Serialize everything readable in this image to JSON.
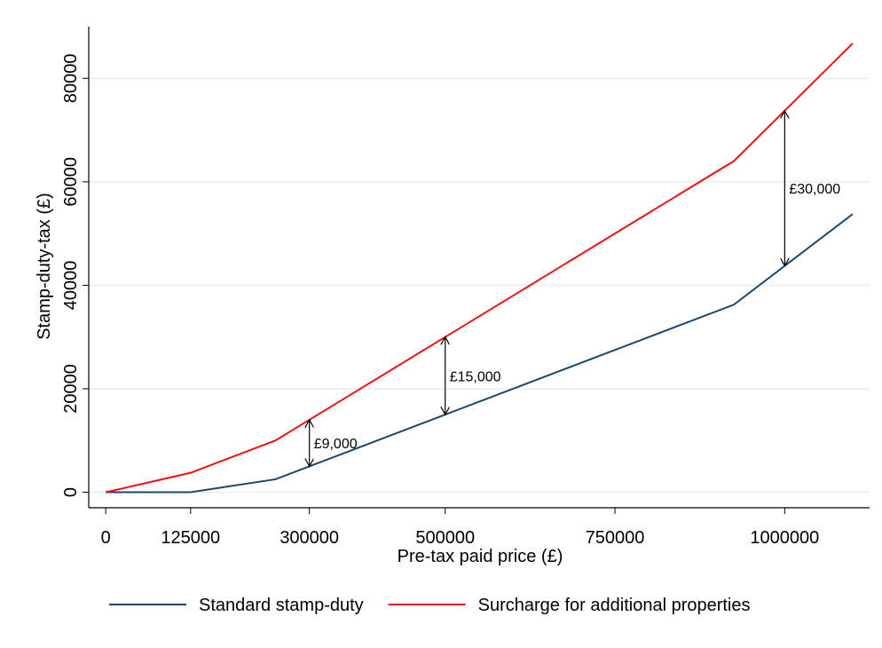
{
  "chart_data": {
    "type": "line",
    "x_label": "Pre-tax paid price (£)",
    "y_label": "Stamp-duty-tax (£)",
    "x": [
      0,
      125000,
      250000,
      925000,
      1100000
    ],
    "series": [
      {
        "name": "Standard stamp-duty",
        "color": "#1a476f",
        "values": [
          0,
          0,
          2500,
          36250,
          53750
        ]
      },
      {
        "name": "Surcharge for additional properties",
        "color": "#ee1111",
        "values": [
          0,
          3750,
          10000,
          64000,
          86750
        ]
      }
    ],
    "annotations": [
      {
        "text": "£9,000",
        "x": 300000,
        "y": [
          5000,
          14000
        ]
      },
      {
        "text": "£15,000",
        "x": 500000,
        "y": [
          15000,
          30000
        ]
      },
      {
        "text": "£30,000",
        "x": 1000000,
        "y": [
          43750,
          73750
        ]
      }
    ],
    "xlim": [
      -25000,
      1125000
    ],
    "ylim": [
      -3000,
      90000
    ],
    "xticks": [
      0,
      125000,
      300000,
      500000,
      750000,
      1000000
    ],
    "yticks": [
      0,
      20000,
      40000,
      60000,
      80000
    ],
    "grid": true,
    "legend": "bottom"
  }
}
